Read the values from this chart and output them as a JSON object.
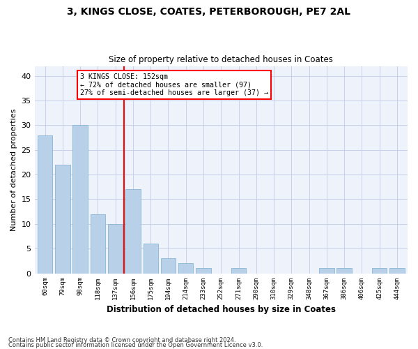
{
  "title1": "3, KINGS CLOSE, COATES, PETERBOROUGH, PE7 2AL",
  "title2": "Size of property relative to detached houses in Coates",
  "xlabel": "Distribution of detached houses by size in Coates",
  "ylabel": "Number of detached properties",
  "categories": [
    "60sqm",
    "79sqm",
    "98sqm",
    "118sqm",
    "137sqm",
    "156sqm",
    "175sqm",
    "194sqm",
    "214sqm",
    "233sqm",
    "252sqm",
    "271sqm",
    "290sqm",
    "310sqm",
    "329sqm",
    "348sqm",
    "367sqm",
    "386sqm",
    "406sqm",
    "425sqm",
    "444sqm"
  ],
  "values": [
    28,
    22,
    30,
    12,
    10,
    17,
    6,
    3,
    2,
    1,
    0,
    1,
    0,
    0,
    0,
    0,
    1,
    1,
    0,
    1,
    1
  ],
  "bar_color": "#b8d0e8",
  "bar_edge_color": "#7aaed0",
  "background_color": "#eef2fb",
  "grid_color": "#c8d0e8",
  "red_line_x": 4.5,
  "annotation_line1": "3 KINGS CLOSE: 152sqm",
  "annotation_line2": "← 72% of detached houses are smaller (97)",
  "annotation_line3": "27% of semi-detached houses are larger (37) →",
  "footnote1": "Contains HM Land Registry data © Crown copyright and database right 2024.",
  "footnote2": "Contains public sector information licensed under the Open Government Licence v3.0.",
  "ylim": [
    0,
    42
  ],
  "yticks": [
    0,
    5,
    10,
    15,
    20,
    25,
    30,
    35,
    40
  ]
}
